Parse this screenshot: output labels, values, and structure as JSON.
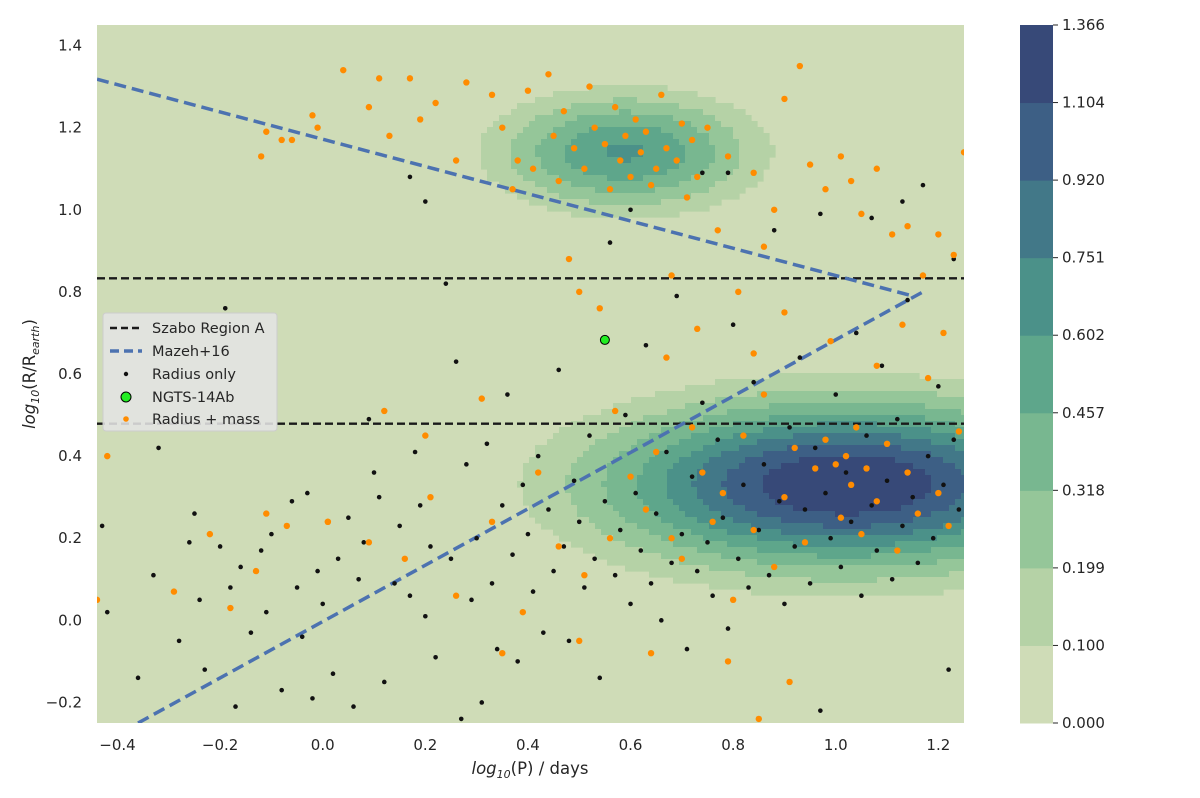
{
  "chart_data": {
    "type": "scatter",
    "title": "",
    "xlabel_main": "log",
    "xlabel_sub": "10",
    "xlabel_rest": "(P) / days",
    "ylabel_main": "log",
    "ylabel_sub": "10",
    "ylabel_rest": "(R/R",
    "ylabel_sub2": "earth",
    "ylabel_close": ")",
    "xlim": [
      -0.44,
      1.25
    ],
    "ylim": [
      -0.25,
      1.45
    ],
    "xticks": [
      -0.4,
      -0.2,
      0.0,
      0.2,
      0.4,
      0.6,
      0.8,
      1.0,
      1.2
    ],
    "xtick_labels": [
      "−0.4",
      "−0.2",
      "0.0",
      "0.2",
      "0.4",
      "0.6",
      "0.8",
      "1.0",
      "1.2"
    ],
    "yticks": [
      -0.2,
      0.0,
      0.2,
      0.4,
      0.6,
      0.8,
      1.0,
      1.2,
      1.4
    ],
    "ytick_labels": [
      "−0.2",
      "0.0",
      "0.2",
      "0.4",
      "0.6",
      "0.8",
      "1.0",
      "1.2",
      "1.4"
    ],
    "background_color": "#cfdcb7",
    "density": {
      "description": "KDE filled contours of planet radius vs period",
      "levels": [
        0.0,
        0.1,
        0.199,
        0.318,
        0.457,
        0.602,
        0.751,
        0.92,
        1.104,
        1.366
      ],
      "level_labels": [
        "0.000",
        "0.100",
        "0.199",
        "0.318",
        "0.457",
        "0.602",
        "0.751",
        "0.920",
        "1.104",
        "1.366"
      ],
      "colors": [
        "#cfdcb7",
        "#b5d2a6",
        "#95c699",
        "#78b790",
        "#5ea68b",
        "#4b9189",
        "#427888",
        "#3d5f85",
        "#374978",
        "#322e58"
      ],
      "peaks": [
        {
          "x": 0.59,
          "y": 1.14,
          "sx": 0.15,
          "sy": 0.085,
          "amp": 0.62
        },
        {
          "x": 1.02,
          "y": 0.33,
          "sx": 0.28,
          "sy": 0.12,
          "amp": 1.32
        }
      ]
    },
    "lines": [
      {
        "name": "Szabo Region A",
        "style": "black-dashed",
        "color": "#1a1a1a",
        "type": "hline",
        "y": 0.833
      },
      {
        "name": "Szabo Region A (lower)",
        "style": "black-dashed",
        "color": "#1a1a1a",
        "type": "hline",
        "y": 0.479
      },
      {
        "name": "Mazeh+16",
        "style": "blue-dashed",
        "color": "#4c72b0",
        "type": "segment",
        "points": [
          [
            -0.44,
            1.318
          ],
          [
            1.15,
            0.79
          ]
        ]
      },
      {
        "name": "Mazeh+16 (lower)",
        "style": "blue-dashed",
        "color": "#4c72b0",
        "type": "segment",
        "points": [
          [
            -0.36,
            -0.25
          ],
          [
            1.17,
            0.8
          ]
        ]
      }
    ],
    "series": [
      {
        "name": "Radius only",
        "marker": "small-dot",
        "color": "#111111"
      },
      {
        "name": "Radius + mass",
        "marker": "dot",
        "color": "#ff8c00"
      },
      {
        "name": "NGTS-14Ab",
        "marker": "circle",
        "color": "#22ee22",
        "edge": "#000000",
        "points": [
          [
            0.55,
            0.683
          ]
        ]
      }
    ],
    "sample_points": {
      "radius_only": [
        [
          -0.43,
          0.23
        ],
        [
          -0.42,
          0.02
        ],
        [
          -0.36,
          -0.14
        ],
        [
          -0.33,
          0.11
        ],
        [
          -0.32,
          0.42
        ],
        [
          -0.28,
          -0.05
        ],
        [
          -0.26,
          0.19
        ],
        [
          -0.25,
          0.26
        ],
        [
          -0.24,
          0.05
        ],
        [
          -0.23,
          -0.12
        ],
        [
          -0.2,
          0.18
        ],
        [
          -0.19,
          0.76
        ],
        [
          -0.18,
          0.08
        ],
        [
          -0.17,
          -0.21
        ],
        [
          -0.16,
          0.13
        ],
        [
          -0.14,
          -0.03
        ],
        [
          -0.12,
          0.17
        ],
        [
          -0.11,
          0.02
        ],
        [
          -0.1,
          0.21
        ],
        [
          -0.08,
          -0.17
        ],
        [
          -0.06,
          0.29
        ],
        [
          -0.05,
          0.08
        ],
        [
          -0.04,
          -0.04
        ],
        [
          -0.03,
          0.31
        ],
        [
          -0.02,
          -0.19
        ],
        [
          -0.01,
          0.12
        ],
        [
          0.0,
          0.04
        ],
        [
          0.02,
          -0.13
        ],
        [
          0.03,
          0.15
        ],
        [
          0.05,
          0.25
        ],
        [
          0.06,
          -0.21
        ],
        [
          0.07,
          0.1
        ],
        [
          0.08,
          0.19
        ],
        [
          0.09,
          0.49
        ],
        [
          0.1,
          0.36
        ],
        [
          0.11,
          0.3
        ],
        [
          0.12,
          -0.15
        ],
        [
          0.14,
          0.09
        ],
        [
          0.15,
          0.23
        ],
        [
          0.17,
          0.06
        ],
        [
          0.18,
          0.41
        ],
        [
          0.19,
          0.28
        ],
        [
          0.2,
          0.01
        ],
        [
          0.21,
          0.18
        ],
        [
          0.22,
          -0.09
        ],
        [
          0.24,
          0.82
        ],
        [
          0.25,
          0.15
        ],
        [
          0.26,
          0.63
        ],
        [
          0.27,
          -0.24
        ],
        [
          0.28,
          0.38
        ],
        [
          0.29,
          0.05
        ],
        [
          0.3,
          0.2
        ],
        [
          0.31,
          -0.2
        ],
        [
          0.32,
          0.43
        ],
        [
          0.33,
          0.09
        ],
        [
          0.34,
          -0.07
        ],
        [
          0.35,
          0.28
        ],
        [
          0.36,
          0.55
        ],
        [
          0.37,
          0.16
        ],
        [
          0.38,
          -0.1
        ],
        [
          0.39,
          0.33
        ],
        [
          0.4,
          0.21
        ],
        [
          0.41,
          0.07
        ],
        [
          0.42,
          0.4
        ],
        [
          0.43,
          -0.03
        ],
        [
          0.44,
          0.27
        ],
        [
          0.45,
          0.12
        ],
        [
          0.46,
          0.61
        ],
        [
          0.47,
          0.18
        ],
        [
          0.48,
          -0.05
        ],
        [
          0.49,
          0.34
        ],
        [
          0.5,
          0.24
        ],
        [
          0.51,
          0.08
        ],
        [
          0.52,
          0.45
        ],
        [
          0.53,
          0.15
        ],
        [
          0.54,
          -0.14
        ],
        [
          0.55,
          0.29
        ],
        [
          0.56,
          0.92
        ],
        [
          0.57,
          0.11
        ],
        [
          0.58,
          0.22
        ],
        [
          0.59,
          0.5
        ],
        [
          0.6,
          0.04
        ],
        [
          0.61,
          0.31
        ],
        [
          0.62,
          0.17
        ],
        [
          0.63,
          0.67
        ],
        [
          0.64,
          0.09
        ],
        [
          0.65,
          0.26
        ],
        [
          0.66,
          0.0
        ],
        [
          0.67,
          0.41
        ],
        [
          0.68,
          0.14
        ],
        [
          0.69,
          0.79
        ],
        [
          0.7,
          0.21
        ],
        [
          0.71,
          -0.07
        ],
        [
          0.72,
          0.35
        ],
        [
          0.73,
          0.12
        ],
        [
          0.74,
          0.53
        ],
        [
          0.75,
          0.19
        ],
        [
          0.76,
          0.06
        ],
        [
          0.77,
          0.44
        ],
        [
          0.78,
          0.25
        ],
        [
          0.79,
          -0.02
        ],
        [
          0.8,
          0.72
        ],
        [
          0.81,
          0.15
        ],
        [
          0.82,
          0.33
        ],
        [
          0.83,
          0.08
        ],
        [
          0.84,
          0.58
        ],
        [
          0.85,
          0.22
        ],
        [
          0.86,
          0.38
        ],
        [
          0.87,
          0.11
        ],
        [
          0.88,
          0.95
        ],
        [
          0.89,
          0.29
        ],
        [
          0.9,
          0.04
        ],
        [
          0.91,
          0.47
        ],
        [
          0.92,
          0.18
        ],
        [
          0.93,
          0.64
        ],
        [
          0.94,
          0.27
        ],
        [
          0.95,
          0.09
        ],
        [
          0.96,
          0.42
        ],
        [
          0.97,
          -0.22
        ],
        [
          0.98,
          0.31
        ],
        [
          0.99,
          0.2
        ],
        [
          1.0,
          0.55
        ],
        [
          1.01,
          0.13
        ],
        [
          1.02,
          0.36
        ],
        [
          1.03,
          0.24
        ],
        [
          1.04,
          0.7
        ],
        [
          1.05,
          0.06
        ],
        [
          1.06,
          0.45
        ],
        [
          1.07,
          0.28
        ],
        [
          1.08,
          0.17
        ],
        [
          1.09,
          0.62
        ],
        [
          1.1,
          0.34
        ],
        [
          1.11,
          0.1
        ],
        [
          1.12,
          0.49
        ],
        [
          1.13,
          0.23
        ],
        [
          1.14,
          0.78
        ],
        [
          1.15,
          0.3
        ],
        [
          1.16,
          0.14
        ],
        [
          1.17,
          1.06
        ],
        [
          1.18,
          0.4
        ],
        [
          1.19,
          0.2
        ],
        [
          1.2,
          0.57
        ],
        [
          1.21,
          0.33
        ],
        [
          1.22,
          -0.12
        ],
        [
          1.23,
          0.44
        ],
        [
          1.24,
          0.27
        ],
        [
          1.13,
          1.02
        ],
        [
          1.07,
          0.98
        ],
        [
          0.97,
          0.99
        ],
        [
          1.23,
          0.88
        ],
        [
          0.6,
          1.0
        ],
        [
          0.74,
          1.09
        ],
        [
          0.79,
          1.09
        ],
        [
          0.2,
          1.02
        ],
        [
          0.17,
          1.08
        ]
      ],
      "radius_mass": [
        [
          -0.44,
          0.05
        ],
        [
          -0.42,
          0.4
        ],
        [
          -0.29,
          0.07
        ],
        [
          -0.12,
          1.13
        ],
        [
          -0.11,
          1.19
        ],
        [
          -0.11,
          0.26
        ],
        [
          -0.08,
          1.17
        ],
        [
          -0.06,
          1.17
        ],
        [
          -0.02,
          1.23
        ],
        [
          -0.01,
          1.2
        ],
        [
          0.01,
          0.24
        ],
        [
          0.04,
          1.34
        ],
        [
          0.09,
          1.25
        ],
        [
          0.11,
          1.32
        ],
        [
          0.12,
          0.51
        ],
        [
          0.13,
          1.18
        ],
        [
          0.17,
          1.32
        ],
        [
          0.19,
          1.22
        ],
        [
          0.2,
          0.45
        ],
        [
          0.22,
          1.26
        ],
        [
          0.26,
          1.12
        ],
        [
          0.28,
          1.31
        ],
        [
          0.31,
          0.54
        ],
        [
          0.33,
          1.28
        ],
        [
          0.35,
          1.2
        ],
        [
          0.37,
          1.05
        ],
        [
          0.38,
          1.12
        ],
        [
          0.4,
          1.29
        ],
        [
          0.41,
          1.1
        ],
        [
          0.42,
          0.36
        ],
        [
          0.44,
          1.33
        ],
        [
          0.45,
          1.18
        ],
        [
          0.46,
          1.07
        ],
        [
          0.47,
          1.24
        ],
        [
          0.48,
          0.88
        ],
        [
          0.49,
          1.15
        ],
        [
          0.5,
          0.8
        ],
        [
          0.51,
          1.1
        ],
        [
          0.52,
          1.3
        ],
        [
          0.53,
          1.2
        ],
        [
          0.54,
          0.76
        ],
        [
          0.55,
          1.16
        ],
        [
          0.56,
          1.05
        ],
        [
          0.57,
          1.25
        ],
        [
          0.58,
          1.12
        ],
        [
          0.59,
          1.18
        ],
        [
          0.6,
          1.08
        ],
        [
          0.61,
          1.22
        ],
        [
          0.62,
          1.14
        ],
        [
          0.63,
          1.19
        ],
        [
          0.64,
          1.06
        ],
        [
          0.65,
          1.1
        ],
        [
          0.66,
          1.28
        ],
        [
          0.67,
          1.15
        ],
        [
          0.68,
          0.84
        ],
        [
          0.69,
          1.12
        ],
        [
          0.7,
          1.21
        ],
        [
          0.71,
          1.03
        ],
        [
          0.72,
          1.17
        ],
        [
          0.73,
          1.08
        ],
        [
          0.75,
          1.2
        ],
        [
          0.77,
          0.95
        ],
        [
          0.79,
          1.13
        ],
        [
          0.81,
          0.8
        ],
        [
          0.84,
          1.09
        ],
        [
          0.86,
          0.91
        ],
        [
          0.88,
          1.0
        ],
        [
          0.9,
          1.27
        ],
        [
          0.93,
          1.35
        ],
        [
          0.95,
          1.11
        ],
        [
          0.98,
          1.05
        ],
        [
          1.01,
          1.13
        ],
        [
          1.03,
          1.07
        ],
        [
          1.05,
          0.99
        ],
        [
          1.08,
          1.1
        ],
        [
          1.11,
          0.94
        ],
        [
          1.14,
          0.96
        ],
        [
          1.17,
          0.84
        ],
        [
          1.2,
          0.94
        ],
        [
          1.23,
          0.89
        ],
        [
          0.57,
          0.51
        ],
        [
          0.6,
          0.35
        ],
        [
          0.63,
          0.27
        ],
        [
          0.65,
          0.41
        ],
        [
          0.68,
          0.2
        ],
        [
          0.7,
          0.15
        ],
        [
          0.72,
          0.47
        ],
        [
          0.74,
          0.36
        ],
        [
          0.76,
          0.24
        ],
        [
          0.78,
          0.31
        ],
        [
          0.8,
          0.05
        ],
        [
          0.82,
          0.45
        ],
        [
          0.84,
          0.22
        ],
        [
          0.86,
          0.55
        ],
        [
          0.88,
          0.13
        ],
        [
          0.9,
          0.3
        ],
        [
          0.92,
          0.42
        ],
        [
          0.94,
          0.19
        ],
        [
          0.96,
          0.37
        ],
        [
          0.98,
          0.44
        ],
        [
          1.0,
          0.38
        ],
        [
          1.01,
          0.25
        ],
        [
          1.02,
          0.4
        ],
        [
          1.03,
          0.33
        ],
        [
          1.04,
          0.47
        ],
        [
          1.05,
          0.21
        ],
        [
          1.06,
          0.37
        ],
        [
          1.08,
          0.29
        ],
        [
          1.1,
          0.43
        ],
        [
          1.12,
          0.17
        ],
        [
          1.14,
          0.36
        ],
        [
          1.16,
          0.26
        ],
        [
          1.18,
          0.59
        ],
        [
          1.2,
          0.31
        ],
        [
          1.22,
          0.23
        ],
        [
          1.24,
          0.46
        ],
        [
          1.21,
          0.7
        ],
        [
          1.13,
          0.72
        ],
        [
          1.08,
          0.62
        ],
        [
          0.99,
          0.68
        ],
        [
          0.9,
          0.75
        ],
        [
          0.84,
          0.65
        ],
        [
          0.73,
          0.71
        ],
        [
          0.67,
          0.64
        ],
        [
          0.56,
          0.2
        ],
        [
          0.51,
          0.11
        ],
        [
          0.46,
          0.18
        ],
        [
          0.39,
          0.02
        ],
        [
          0.33,
          0.24
        ],
        [
          0.26,
          0.06
        ],
        [
          0.21,
          0.3
        ],
        [
          0.16,
          0.15
        ],
        [
          0.09,
          0.19
        ],
        [
          0.01,
          0.24
        ],
        [
          -0.07,
          0.23
        ],
        [
          -0.13,
          0.12
        ],
        [
          -0.18,
          0.03
        ],
        [
          -0.22,
          0.21
        ],
        [
          0.35,
          -0.08
        ],
        [
          0.5,
          -0.05
        ],
        [
          0.64,
          -0.08
        ],
        [
          0.79,
          -0.1
        ],
        [
          0.91,
          -0.15
        ],
        [
          0.85,
          -0.24
        ],
        [
          1.25,
          1.14
        ]
      ]
    },
    "legend": {
      "position": "center-left",
      "entries": [
        {
          "label": "Szabo Region A",
          "key": "szabo"
        },
        {
          "label": "Mazeh+16",
          "key": "mazeh"
        },
        {
          "label": "Radius only",
          "key": "radius-only"
        },
        {
          "label": "NGTS-14Ab",
          "key": "ngts"
        },
        {
          "label": "Radius + mass",
          "key": "radius-mass"
        }
      ]
    },
    "colorbar": {
      "ticks": [
        "1.366",
        "1.104",
        "0.920",
        "0.751",
        "0.602",
        "0.457",
        "0.318",
        "0.199",
        "0.100",
        "0.000"
      ]
    }
  }
}
